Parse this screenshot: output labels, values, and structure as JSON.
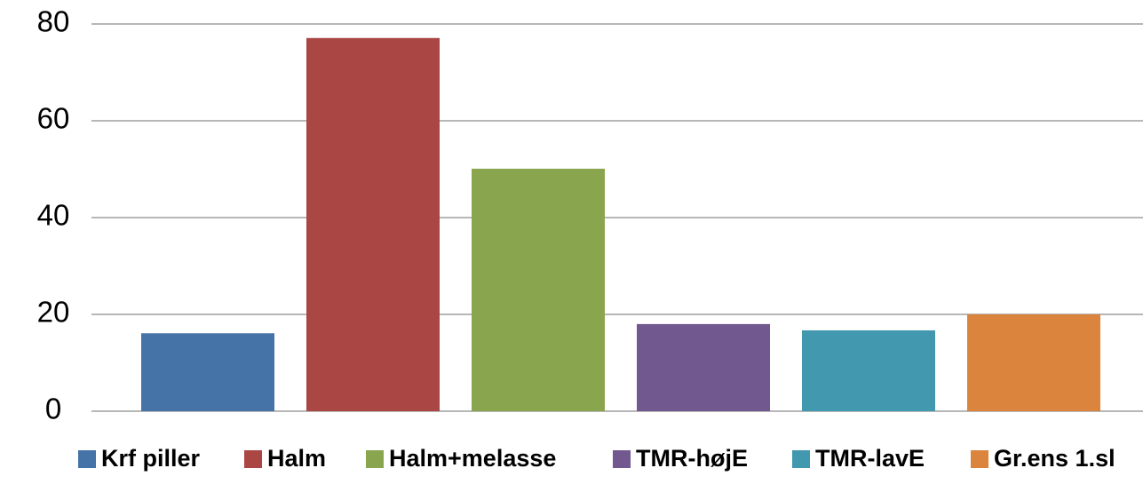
{
  "chart_data": {
    "type": "bar",
    "series": [
      {
        "name": "Krf piller",
        "color": "#4572a7",
        "values": [
          16.1
        ]
      },
      {
        "name": "Halm",
        "color": "#aa4643",
        "values": [
          77.1
        ]
      },
      {
        "name": "Halm+melasse",
        "color": "#89a54e",
        "values": [
          50.1
        ]
      },
      {
        "name": "TMR-højE",
        "color": "#71588f",
        "values": [
          18.0
        ]
      },
      {
        "name": "TMR-lavE",
        "color": "#4198af",
        "values": [
          16.7
        ]
      },
      {
        "name": "Gr.ens 1.sl",
        "color": "#db843d",
        "values": [
          20.0
        ]
      }
    ],
    "ylim": [
      0,
      80
    ],
    "yticks": [
      0,
      20,
      40,
      60,
      80
    ],
    "grid": true,
    "legend": "bottom"
  }
}
